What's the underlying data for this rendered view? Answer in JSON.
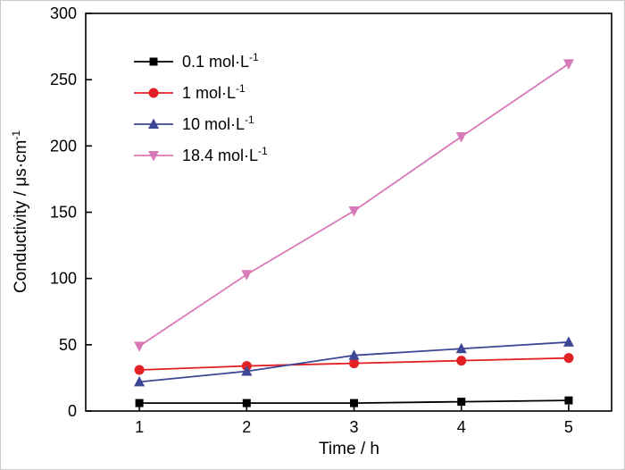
{
  "chart_data": {
    "type": "line",
    "title": "",
    "xlabel": "Time / h",
    "ylabel": "Conductivity / μs·cm",
    "ylabel_sup": "-1",
    "x": [
      1,
      2,
      3,
      4,
      5
    ],
    "x_ticks": [
      1,
      2,
      3,
      4,
      5
    ],
    "y_ticks": [
      0,
      50,
      100,
      150,
      200,
      250,
      300
    ],
    "xlim": [
      0.5,
      5.4
    ],
    "ylim": [
      0,
      300
    ],
    "grid": false,
    "legend_position": "upper-left",
    "axis_color": "#000000",
    "series": [
      {
        "label": "0.1 mol·L",
        "label_sup": "-1",
        "marker": "square",
        "color": "#000000",
        "values": [
          6,
          6,
          6,
          7,
          8
        ]
      },
      {
        "label": "1 mol·L",
        "label_sup": "-1",
        "marker": "circle",
        "color": "#e32124",
        "values": [
          31,
          34,
          36,
          38,
          40
        ]
      },
      {
        "label": "10 mol·L",
        "label_sup": "-1",
        "marker": "triangle-up",
        "color": "#3e4795",
        "values": [
          22,
          30,
          42,
          47,
          52
        ]
      },
      {
        "label": "18.4 mol·L",
        "label_sup": "-1",
        "marker": "triangle-down",
        "color": "#d97ab8",
        "values": [
          49,
          103,
          151,
          207,
          262
        ]
      }
    ]
  }
}
